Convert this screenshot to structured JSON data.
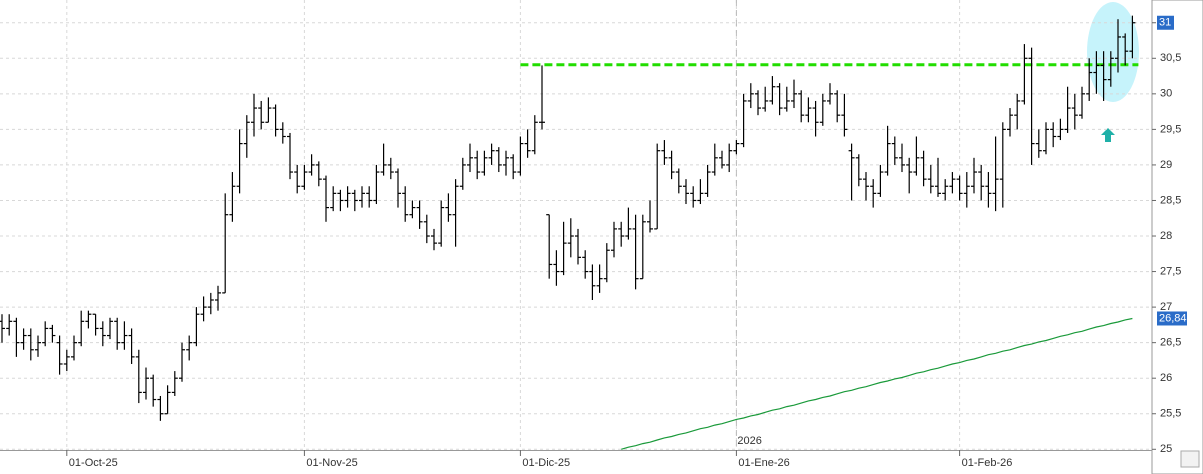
{
  "chart_data": {
    "type": "ohlc",
    "categories": [
      null,
      null,
      null,
      null,
      null,
      null,
      null,
      null,
      null,
      "01-Oct-25",
      null,
      null,
      null,
      null,
      null,
      null,
      null,
      null,
      null,
      null,
      null,
      null,
      null,
      null,
      null,
      null,
      null,
      null,
      null,
      null,
      null,
      null,
      null,
      null,
      null,
      null,
      null,
      null,
      null,
      null,
      null,
      null,
      "01-Nov-25",
      null,
      null,
      null,
      null,
      null,
      null,
      null,
      null,
      null,
      null,
      null,
      null,
      null,
      null,
      null,
      null,
      null,
      null,
      null,
      null,
      null,
      null,
      null,
      null,
      null,
      null,
      null,
      null,
      null,
      "01-Dic-25",
      null,
      null,
      null,
      null,
      null,
      null,
      null,
      null,
      null,
      null,
      null,
      null,
      null,
      null,
      null,
      null,
      null,
      null,
      null,
      null,
      null,
      null,
      null,
      null,
      null,
      null,
      null,
      null,
      null,
      "01-Ene-26",
      null,
      null,
      null,
      null,
      null,
      null,
      null,
      null,
      null,
      null,
      null,
      null,
      null,
      null,
      null,
      null,
      null,
      null,
      null,
      null,
      null,
      null,
      null,
      null,
      null,
      null,
      null,
      null,
      null,
      null,
      "01-Feb-26",
      null,
      null,
      null,
      null,
      null,
      null,
      null,
      null,
      null,
      null,
      null,
      null,
      null,
      null,
      null,
      null,
      null,
      null,
      null,
      null,
      null,
      null,
      null,
      null
    ],
    "ohlc": [
      [
        26.8,
        26.9,
        26.5,
        26.7
      ],
      [
        26.7,
        26.9,
        26.6,
        26.8
      ],
      [
        26.8,
        26.85,
        26.3,
        26.5
      ],
      [
        26.5,
        26.7,
        26.4,
        26.6
      ],
      [
        26.6,
        26.7,
        26.25,
        26.4
      ],
      [
        26.4,
        26.6,
        26.3,
        26.5
      ],
      [
        26.5,
        26.8,
        26.45,
        26.7
      ],
      [
        26.7,
        26.75,
        26.5,
        26.6
      ],
      [
        26.5,
        26.6,
        26.05,
        26.2
      ],
      [
        26.2,
        26.4,
        26.1,
        26.3
      ],
      [
        26.3,
        26.6,
        26.25,
        26.5
      ],
      [
        26.5,
        26.95,
        26.45,
        26.8
      ],
      [
        26.8,
        26.95,
        26.7,
        26.9
      ],
      [
        26.9,
        26.9,
        26.6,
        26.7
      ],
      [
        26.7,
        26.8,
        26.45,
        26.6
      ],
      [
        26.6,
        26.85,
        26.55,
        26.8
      ],
      [
        26.8,
        26.85,
        26.4,
        26.5
      ],
      [
        26.5,
        26.8,
        26.4,
        26.6
      ],
      [
        26.6,
        26.7,
        26.2,
        26.3
      ],
      [
        26.3,
        26.4,
        25.65,
        25.8
      ],
      [
        25.8,
        26.15,
        25.7,
        26.0
      ],
      [
        26.0,
        26.05,
        25.6,
        25.7
      ],
      [
        25.7,
        25.75,
        25.4,
        25.5
      ],
      [
        25.5,
        25.9,
        25.5,
        25.8
      ],
      [
        25.8,
        26.1,
        25.75,
        26.0
      ],
      [
        26.0,
        26.5,
        25.95,
        26.4
      ],
      [
        26.4,
        26.6,
        26.25,
        26.5
      ],
      [
        26.5,
        27.0,
        26.45,
        26.9
      ],
      [
        26.9,
        27.15,
        26.8,
        27.0
      ],
      [
        27.0,
        27.2,
        26.9,
        27.1
      ],
      [
        27.1,
        27.3,
        26.95,
        27.2
      ],
      [
        27.2,
        28.6,
        27.2,
        28.3
      ],
      [
        28.3,
        28.9,
        28.2,
        28.7
      ],
      [
        28.7,
        29.5,
        28.6,
        29.3
      ],
      [
        29.3,
        29.7,
        29.1,
        29.6
      ],
      [
        29.6,
        30.0,
        29.4,
        29.8
      ],
      [
        29.8,
        29.9,
        29.5,
        29.6
      ],
      [
        29.6,
        29.95,
        29.6,
        29.8
      ],
      [
        29.8,
        29.85,
        29.4,
        29.5
      ],
      [
        29.5,
        29.6,
        29.3,
        29.4
      ],
      [
        29.4,
        29.45,
        28.8,
        28.9
      ],
      [
        28.9,
        29.0,
        28.6,
        28.7
      ],
      [
        28.7,
        29.0,
        28.65,
        28.9
      ],
      [
        28.9,
        29.15,
        28.85,
        29.0
      ],
      [
        29.0,
        29.05,
        28.7,
        28.8
      ],
      [
        28.8,
        28.85,
        28.2,
        28.4
      ],
      [
        28.4,
        28.7,
        28.35,
        28.6
      ],
      [
        28.6,
        28.65,
        28.35,
        28.5
      ],
      [
        28.5,
        28.7,
        28.4,
        28.6
      ],
      [
        28.6,
        28.65,
        28.35,
        28.5
      ],
      [
        28.5,
        28.7,
        28.4,
        28.6
      ],
      [
        28.6,
        28.7,
        28.4,
        28.5
      ],
      [
        28.5,
        29.0,
        28.45,
        28.9
      ],
      [
        28.9,
        29.3,
        28.85,
        29.0
      ],
      [
        29.0,
        29.1,
        28.8,
        28.9
      ],
      [
        28.9,
        28.95,
        28.4,
        28.6
      ],
      [
        28.6,
        28.7,
        28.2,
        28.3
      ],
      [
        28.3,
        28.5,
        28.25,
        28.4
      ],
      [
        28.4,
        28.5,
        28.1,
        28.2
      ],
      [
        28.2,
        28.3,
        27.9,
        28.0
      ],
      [
        28.0,
        28.1,
        27.8,
        27.9
      ],
      [
        27.9,
        28.5,
        27.85,
        28.4
      ],
      [
        28.4,
        28.6,
        28.2,
        28.3
      ],
      [
        28.3,
        28.8,
        27.85,
        28.7
      ],
      [
        28.7,
        29.1,
        28.65,
        29.0
      ],
      [
        29.0,
        29.3,
        28.9,
        29.1
      ],
      [
        29.1,
        29.2,
        28.8,
        28.9
      ],
      [
        28.9,
        29.2,
        28.85,
        29.1
      ],
      [
        29.1,
        29.3,
        29.0,
        29.2
      ],
      [
        29.2,
        29.25,
        28.9,
        29.0
      ],
      [
        29.0,
        29.2,
        28.85,
        29.1
      ],
      [
        29.1,
        29.15,
        28.8,
        28.9
      ],
      [
        28.9,
        29.4,
        28.85,
        29.3
      ],
      [
        29.3,
        29.5,
        29.1,
        29.2
      ],
      [
        29.2,
        29.7,
        29.15,
        29.6
      ],
      [
        29.6,
        30.4,
        29.5,
        29.6
      ],
      [
        28.3,
        28.3,
        27.4,
        27.6
      ],
      [
        27.6,
        27.8,
        27.3,
        27.5
      ],
      [
        27.5,
        28.2,
        27.45,
        27.9
      ],
      [
        27.9,
        28.25,
        27.7,
        28.0
      ],
      [
        28.0,
        28.1,
        27.6,
        27.7
      ],
      [
        27.7,
        27.8,
        27.4,
        27.5
      ],
      [
        27.5,
        27.6,
        27.1,
        27.3
      ],
      [
        27.3,
        27.6,
        27.2,
        27.4
      ],
      [
        27.4,
        27.9,
        27.35,
        27.8
      ],
      [
        27.8,
        28.2,
        27.7,
        28.1
      ],
      [
        28.1,
        28.2,
        27.85,
        28.0
      ],
      [
        28.0,
        28.4,
        27.95,
        28.1
      ],
      [
        28.1,
        28.3,
        27.25,
        27.4
      ],
      [
        27.4,
        28.3,
        27.4,
        28.2
      ],
      [
        28.2,
        28.5,
        28.05,
        28.1
      ],
      [
        28.1,
        29.3,
        28.1,
        29.2
      ],
      [
        29.2,
        29.35,
        29.0,
        29.1
      ],
      [
        29.1,
        29.2,
        28.8,
        28.9
      ],
      [
        28.9,
        28.95,
        28.6,
        28.7
      ],
      [
        28.7,
        28.8,
        28.45,
        28.6
      ],
      [
        28.6,
        28.7,
        28.4,
        28.5
      ],
      [
        28.5,
        28.8,
        28.45,
        28.6
      ],
      [
        28.6,
        29.0,
        28.55,
        28.9
      ],
      [
        28.9,
        29.3,
        28.85,
        29.1
      ],
      [
        29.1,
        29.2,
        28.95,
        29.0
      ],
      [
        29.0,
        29.3,
        28.9,
        29.2
      ],
      [
        29.2,
        29.35,
        29.15,
        29.3
      ],
      [
        29.3,
        30.0,
        29.25,
        29.9
      ],
      [
        29.9,
        30.15,
        29.8,
        30.0
      ],
      [
        30.0,
        30.05,
        29.7,
        29.8
      ],
      [
        29.8,
        30.1,
        29.75,
        29.9
      ],
      [
        29.9,
        30.25,
        29.85,
        30.1
      ],
      [
        30.1,
        30.15,
        29.7,
        29.8
      ],
      [
        29.8,
        30.1,
        29.75,
        29.9
      ],
      [
        29.9,
        30.2,
        29.8,
        30.0
      ],
      [
        30.0,
        30.05,
        29.6,
        29.7
      ],
      [
        29.7,
        29.95,
        29.6,
        29.8
      ],
      [
        29.8,
        29.9,
        29.4,
        29.6
      ],
      [
        29.6,
        30.0,
        29.55,
        29.9
      ],
      [
        29.9,
        30.15,
        29.85,
        30.0
      ],
      [
        30.0,
        30.05,
        29.6,
        29.7
      ],
      [
        29.7,
        30.0,
        29.4,
        29.5
      ],
      [
        29.2,
        29.3,
        28.5,
        29.1
      ],
      [
        29.1,
        29.15,
        28.7,
        28.8
      ],
      [
        28.8,
        28.9,
        28.5,
        28.7
      ],
      [
        28.7,
        28.8,
        28.4,
        28.6
      ],
      [
        28.6,
        29.0,
        28.55,
        28.9
      ],
      [
        28.9,
        29.55,
        28.85,
        29.3
      ],
      [
        29.3,
        29.4,
        29.0,
        29.1
      ],
      [
        29.1,
        29.3,
        28.9,
        29.0
      ],
      [
        29.0,
        29.1,
        28.6,
        28.9
      ],
      [
        28.9,
        29.4,
        28.85,
        29.1
      ],
      [
        29.1,
        29.2,
        28.7,
        28.8
      ],
      [
        28.8,
        29.0,
        28.6,
        28.7
      ],
      [
        28.7,
        29.1,
        28.55,
        28.6
      ],
      [
        28.6,
        28.8,
        28.5,
        28.7
      ],
      [
        28.7,
        28.9,
        28.6,
        28.8
      ],
      [
        28.8,
        28.85,
        28.5,
        28.6
      ],
      [
        28.6,
        28.9,
        28.4,
        28.7
      ],
      [
        28.7,
        29.1,
        28.6,
        28.9
      ],
      [
        28.9,
        29.0,
        28.5,
        28.7
      ],
      [
        28.7,
        28.9,
        28.4,
        28.6
      ],
      [
        28.6,
        29.4,
        28.35,
        28.8
      ],
      [
        28.8,
        29.6,
        28.4,
        29.5
      ],
      [
        29.5,
        29.8,
        29.4,
        29.7
      ],
      [
        29.7,
        30.0,
        29.5,
        29.9
      ],
      [
        29.9,
        30.7,
        29.85,
        30.5
      ],
      [
        30.5,
        30.65,
        29.0,
        29.3
      ],
      [
        29.3,
        29.5,
        29.1,
        29.2
      ],
      [
        29.2,
        29.6,
        29.15,
        29.5
      ],
      [
        29.5,
        29.6,
        29.25,
        29.4
      ],
      [
        29.4,
        29.65,
        29.35,
        29.5
      ],
      [
        29.5,
        30.1,
        29.45,
        29.8
      ],
      [
        29.8,
        30.0,
        29.5,
        29.7
      ],
      [
        29.7,
        30.1,
        29.65,
        30.0
      ],
      [
        30.0,
        30.5,
        29.9,
        30.3
      ],
      [
        30.3,
        30.6,
        30.0,
        30.4
      ],
      [
        30.4,
        30.6,
        29.9,
        30.2
      ],
      [
        30.2,
        30.6,
        30.1,
        30.5
      ],
      [
        30.5,
        31.05,
        30.3,
        30.8
      ],
      [
        30.8,
        30.85,
        30.4,
        30.6
      ],
      [
        30.6,
        31.1,
        30.5,
        31
      ]
    ],
    "bar_color": "#000000",
    "moving_average": {
      "color": "#1a9a3a",
      "values": [
        null,
        null,
        null,
        null,
        null,
        null,
        null,
        null,
        null,
        null,
        null,
        null,
        null,
        null,
        null,
        null,
        null,
        null,
        null,
        null,
        null,
        null,
        null,
        null,
        null,
        null,
        null,
        null,
        null,
        null,
        null,
        null,
        null,
        null,
        null,
        null,
        null,
        null,
        null,
        null,
        null,
        null,
        null,
        null,
        null,
        null,
        null,
        null,
        null,
        null,
        null,
        null,
        null,
        null,
        null,
        null,
        null,
        null,
        null,
        null,
        null,
        null,
        null,
        null,
        null,
        null,
        null,
        null,
        null,
        null,
        null,
        null,
        null,
        null,
        null,
        null,
        null,
        null,
        null,
        null,
        null,
        null,
        null,
        null,
        null,
        null,
        25.0,
        25.03,
        25.05,
        25.08,
        25.1,
        25.13,
        25.16,
        25.18,
        25.21,
        25.23,
        25.26,
        25.29,
        25.31,
        25.34,
        25.36,
        25.39,
        25.42,
        25.44,
        25.47,
        25.49,
        25.52,
        25.55,
        25.57,
        25.6,
        25.62,
        25.65,
        25.68,
        25.7,
        25.73,
        25.75,
        25.78,
        25.81,
        25.83,
        25.86,
        25.88,
        25.91,
        25.94,
        25.96,
        25.99,
        26.01,
        26.04,
        26.07,
        26.09,
        26.12,
        26.14,
        26.17,
        26.2,
        26.22,
        26.25,
        26.27,
        26.3,
        26.33,
        26.35,
        26.38,
        26.4,
        26.43,
        26.46,
        26.48,
        26.51,
        26.53,
        26.56,
        26.59,
        26.61,
        26.64,
        26.66,
        26.69,
        26.72,
        26.74,
        26.77,
        26.79,
        26.82,
        26.84
      ],
      "last_label": "26,84"
    },
    "resistance": {
      "value": 30.41,
      "color": "#22dd00",
      "start": "01-Dic-25"
    },
    "year_marker": {
      "label": "2026",
      "at": "01-Ene-26"
    },
    "ylim": [
      24.99,
      31.32
    ],
    "yticks": [
      25,
      {
        "value": 25.5,
        "label": "25,5"
      },
      26,
      {
        "value": 26.5,
        "label": "26,5"
      },
      27,
      {
        "value": 27.5,
        "label": "27,5"
      },
      28,
      {
        "value": 28.5,
        "label": "28,5"
      },
      29,
      {
        "value": 29.5,
        "label": "29,5"
      },
      30,
      {
        "value": 30.5,
        "label": "30,5"
      },
      31
    ],
    "grid": true,
    "last_marker_color": "#2a6cc8"
  }
}
